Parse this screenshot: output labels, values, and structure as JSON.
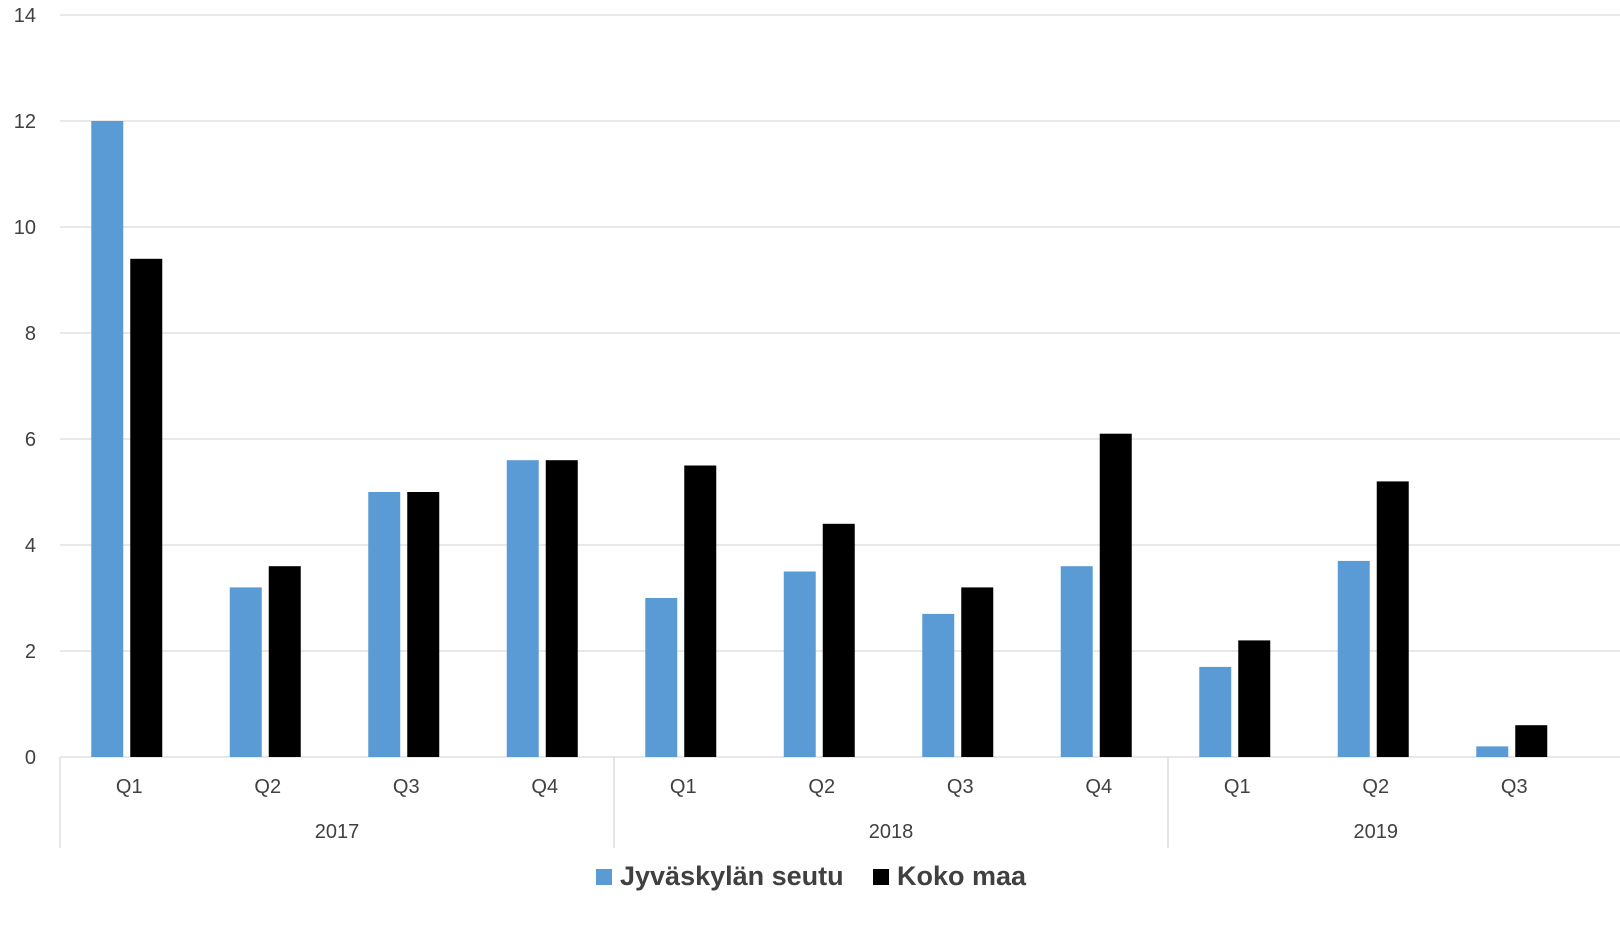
{
  "chart_data": {
    "type": "bar",
    "title": "",
    "xlabel": "",
    "ylabel": "",
    "ylim": [
      0,
      14
    ],
    "yticks": [
      0,
      2,
      4,
      6,
      8,
      10,
      12,
      14
    ],
    "grid": true,
    "legend_position": "bottom-center",
    "groups": [
      {
        "label": "2017",
        "categories": [
          "Q1",
          "Q2",
          "Q3",
          "Q4"
        ]
      },
      {
        "label": "2018",
        "categories": [
          "Q1",
          "Q2",
          "Q3",
          "Q4"
        ]
      },
      {
        "label": "2019",
        "categories": [
          "Q1",
          "Q2",
          "Q3"
        ]
      }
    ],
    "categories": [
      "Q1",
      "Q2",
      "Q3",
      "Q4",
      "Q1",
      "Q2",
      "Q3",
      "Q4",
      "Q1",
      "Q2",
      "Q3"
    ],
    "series": [
      {
        "name": "Jyväskylän seutu",
        "color": "#5b9bd5",
        "values": [
          12.0,
          3.2,
          5.0,
          5.6,
          3.0,
          3.5,
          2.7,
          3.6,
          1.7,
          3.7,
          0.2
        ]
      },
      {
        "name": "Koko maa",
        "color": "#000000",
        "values": [
          9.4,
          3.6,
          5.0,
          5.6,
          5.5,
          4.4,
          3.2,
          6.1,
          2.2,
          5.2,
          0.6
        ]
      }
    ]
  }
}
